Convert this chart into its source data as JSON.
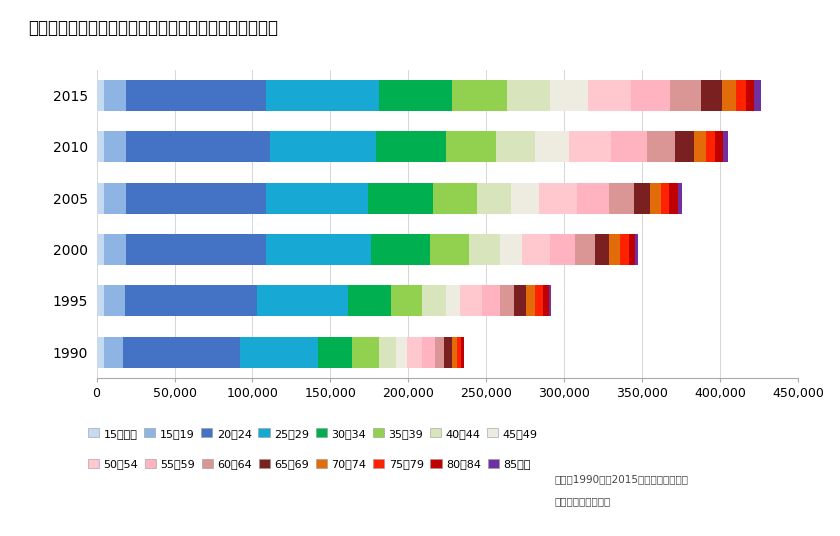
{
  "title": "図　民営借家単独世帯の年齢別世帯数推移（東京市部）",
  "years": [
    1990,
    1995,
    2000,
    2005,
    2010,
    2015
  ],
  "age_groups": [
    "15歳未満",
    "15〜19",
    "20〜24",
    "25〜29",
    "30〜34",
    "35〜39",
    "40〜44",
    "45〜49",
    "50〜54",
    "55〜59",
    "60〜64",
    "65〜69",
    "70〜74",
    "75〜79",
    "80〜84",
    "85以上"
  ],
  "colors": [
    "#c5d9f1",
    "#8db4e2",
    "#4472c4",
    "#17a8d4",
    "#00b050",
    "#92d050",
    "#d8e4bc",
    "#eeece1",
    "#ffc7ce",
    "#ffb3c1",
    "#d99694",
    "#7b2020",
    "#e26b0a",
    "#ff2200",
    "#c00000",
    "#7030a0"
  ],
  "age_data": {
    "1990": [
      5000,
      12000,
      75000,
      50000,
      22000,
      17000,
      11000,
      7000,
      10000,
      8000,
      6000,
      5000,
      3500,
      2500,
      1500,
      500
    ],
    "1995": [
      5000,
      13000,
      85000,
      58000,
      28000,
      20000,
      15000,
      9000,
      14000,
      12000,
      9000,
      7500,
      6000,
      5000,
      3500,
      1500
    ],
    "2000": [
      5000,
      14000,
      90000,
      67000,
      38000,
      25000,
      20000,
      14000,
      18000,
      16000,
      13000,
      9000,
      7000,
      5500,
      4000,
      2000
    ],
    "2005": [
      5000,
      14000,
      90000,
      65000,
      42000,
      28000,
      22000,
      18000,
      24000,
      21000,
      16000,
      10000,
      7000,
      5500,
      5500,
      2500
    ],
    "2010": [
      5000,
      14000,
      92000,
      68000,
      45000,
      32000,
      25000,
      22000,
      27000,
      23000,
      18000,
      12000,
      8000,
      6000,
      5000,
      3000
    ],
    "2015": [
      5000,
      14000,
      90000,
      72000,
      47000,
      35000,
      28000,
      24000,
      28000,
      25000,
      20000,
      13000,
      9000,
      6500,
      5500,
      4000
    ]
  },
  "xlim_max": 450000,
  "xticks": [
    0,
    50000,
    100000,
    150000,
    200000,
    250000,
    300000,
    350000,
    400000,
    450000
  ],
  "source_text1": "出所：1990年〜2015年総務省国勢調査",
  "source_text2": "作成：株式会社タス",
  "background_color": "#ffffff",
  "bar_height": 0.6,
  "title_color": "#000000",
  "left_border_color": "#1f3864",
  "grid_color": "#d0d0d0",
  "tick_fontsize": 9,
  "ylabel_fontsize": 10
}
